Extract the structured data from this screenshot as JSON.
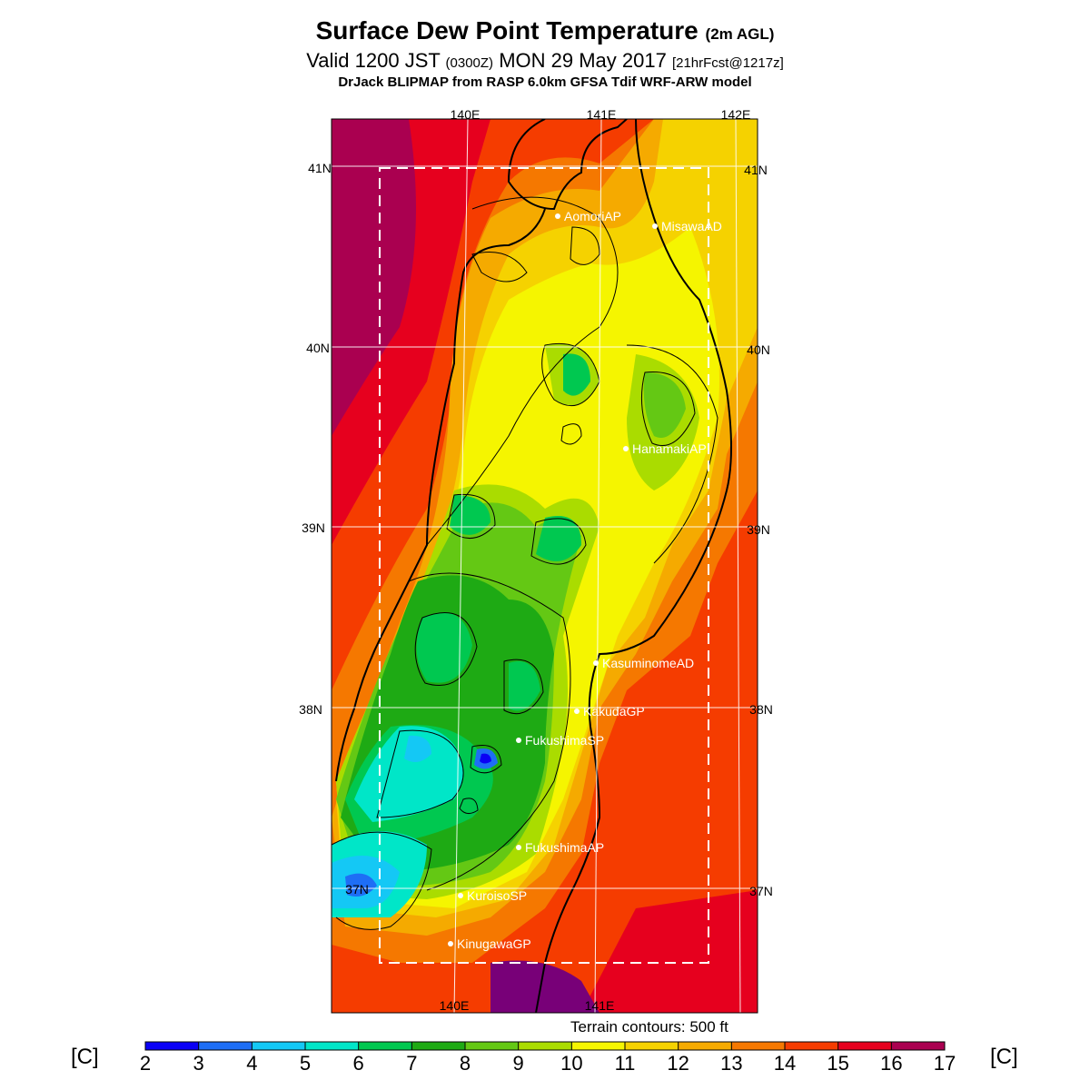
{
  "header": {
    "title": "Surface Dew Point Temperature",
    "title_suffix": "(2m AGL)",
    "valid_main": "Valid 1200 JST",
    "valid_utc": "(0300Z)",
    "valid_date": "MON 29 May 2017",
    "valid_fcst": "[21hrFcst@1217z]",
    "model_line": "DrJack BLIPMAP from RASP 6.0km GFSA Tdif WRF-ARW model"
  },
  "map": {
    "lon_labels_top": [
      "140E",
      "141E",
      "142E"
    ],
    "lon_labels_bottom": [
      "140E",
      "141E"
    ],
    "lat_labels": [
      "41N",
      "40N",
      "39N",
      "38N",
      "37N"
    ],
    "sites": [
      {
        "name": "AomoriAP"
      },
      {
        "name": "MisawaAD"
      },
      {
        "name": "HanamakiAP"
      },
      {
        "name": "KasuminomeAD"
      },
      {
        "name": "KakudaGP"
      },
      {
        "name": "FukushimaSP"
      },
      {
        "name": "FukushimaAP"
      },
      {
        "name": "KuroisoSP"
      },
      {
        "name": "KinugawaGP"
      }
    ],
    "terrain_note": "Terrain contours: 500 ft"
  },
  "colorbar": {
    "unit": "[C]",
    "ticks": [
      "2",
      "3",
      "4",
      "5",
      "6",
      "7",
      "8",
      "9",
      "10",
      "11",
      "12",
      "13",
      "14",
      "15",
      "16",
      "17"
    ],
    "colors": [
      "#0a00f5",
      "#1e6ef5",
      "#14c8f5",
      "#00e6c8",
      "#00c850",
      "#1eaa14",
      "#64c814",
      "#aadc00",
      "#f5f500",
      "#f5d200",
      "#f5aa00",
      "#f57800",
      "#f53c00",
      "#e6001e",
      "#aa0050",
      "#780078"
    ]
  }
}
